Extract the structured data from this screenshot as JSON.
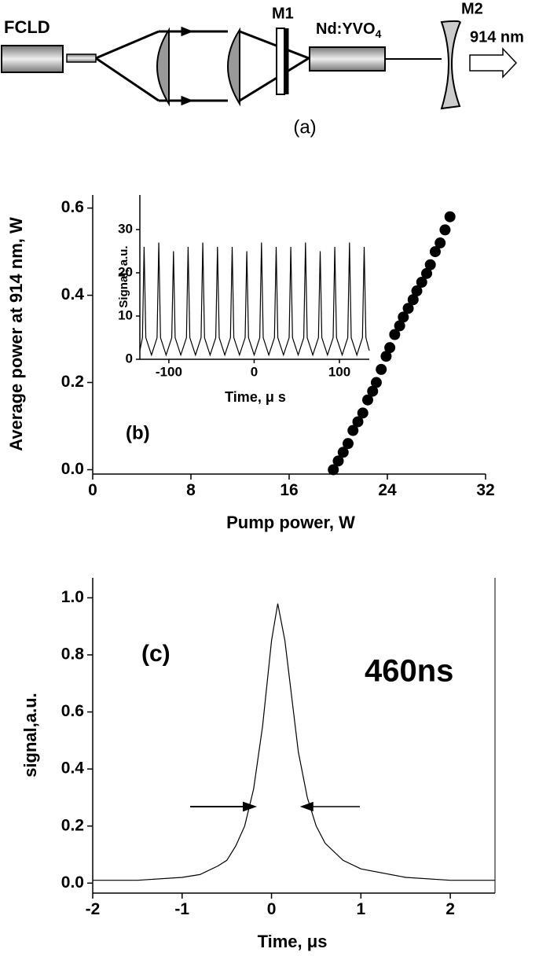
{
  "diagram": {
    "source": "FCLD",
    "mirror1": "M1",
    "crystal": {
      "base": "Nd:YVO",
      "subscript": "4"
    },
    "mirror2": "M2",
    "output": "914 nm",
    "caption": "(a)"
  },
  "chart_data": [
    {
      "type": "scatter",
      "xlabel": "Pump power, W",
      "ylabel": "Average power at 914 nm, W",
      "annotations": [
        "(b)"
      ],
      "color": "#000000",
      "x": [
        19.6,
        20.0,
        20.4,
        20.8,
        21.2,
        21.6,
        22.0,
        22.4,
        22.8,
        23.1,
        23.5,
        23.9,
        24.2,
        24.6,
        25.0,
        25.3,
        25.7,
        26.1,
        26.4,
        26.8,
        27.2,
        27.5,
        27.9,
        28.3,
        28.7,
        29.1
      ],
      "values": [
        0.0,
        0.02,
        0.04,
        0.06,
        0.09,
        0.11,
        0.13,
        0.16,
        0.18,
        0.2,
        0.23,
        0.26,
        0.28,
        0.31,
        0.33,
        0.35,
        0.37,
        0.39,
        0.41,
        0.43,
        0.45,
        0.47,
        0.5,
        0.52,
        0.55,
        0.58
      ],
      "xlim": [
        0,
        32
      ],
      "ylim": [
        -0.01,
        0.63
      ],
      "xticks": [
        0,
        8,
        16,
        24,
        32
      ],
      "yticks": [
        {
          "value": 0,
          "label": "0.0"
        },
        0.2,
        0.4,
        0.6
      ]
    },
    {
      "type": "line",
      "xlabel": "Time, μ s",
      "ylabel": "Signal, a.u.",
      "annotations": [],
      "color": "#000000",
      "x": [
        -134,
        -131,
        -129,
        -127,
        -120.4,
        -113.8,
        -111.8,
        -109.8,
        -103.2,
        -96.6,
        -94.6,
        -92.6,
        -86,
        -79.4,
        -77.4,
        -75.4,
        -68.8,
        -62.2,
        -60.2,
        -58.2,
        -51.6,
        -45,
        -43,
        -41,
        -34.4,
        -27.8,
        -25.8,
        -23.8,
        -17.2,
        -10.6,
        -8.6,
        -6.6,
        0,
        6.6,
        8.6,
        10.6,
        17.2,
        23.8,
        25.8,
        27.8,
        34.4,
        41,
        43,
        45,
        51.6,
        58.2,
        60.2,
        62.2,
        68.8,
        75.4,
        77.4,
        79.4,
        86,
        92.6,
        94.6,
        96.6,
        103.2,
        109.8,
        111.8,
        113.8,
        120.4,
        127,
        129,
        131,
        135
      ],
      "values": [
        2,
        5,
        26,
        5,
        1,
        5,
        27,
        5,
        1,
        5,
        25,
        5,
        1,
        5,
        26,
        5,
        1,
        5,
        27,
        5,
        1,
        5,
        26,
        5,
        1,
        5,
        26,
        5,
        1,
        5,
        25,
        5,
        1,
        5,
        27,
        5,
        1,
        5,
        26,
        5,
        1,
        5,
        26,
        5,
        1,
        5,
        27,
        5,
        1,
        5,
        25,
        5,
        1,
        5,
        26,
        5,
        1,
        5,
        27,
        5,
        1,
        5,
        26,
        5,
        2
      ],
      "xlim": [
        -134,
        135
      ],
      "ylim": [
        0,
        38
      ],
      "xticks": [
        -100,
        0,
        100
      ],
      "yticks": [
        0,
        10,
        20,
        30
      ]
    },
    {
      "type": "line",
      "xlabel": "Time, μs",
      "ylabel": "signal,a.u.",
      "annotations": [
        "(c)",
        "460ns"
      ],
      "color": "#000000",
      "x": [
        -2,
        -1.5,
        -1,
        -0.8,
        -0.6,
        -0.5,
        -0.4,
        -0.3,
        -0.2,
        -0.1,
        0,
        0.07,
        0.15,
        0.2,
        0.3,
        0.4,
        0.5,
        0.6,
        0.8,
        1,
        1.5,
        2,
        2.5
      ],
      "values": [
        0.01,
        0.01,
        0.02,
        0.03,
        0.06,
        0.08,
        0.13,
        0.2,
        0.33,
        0.55,
        0.85,
        0.98,
        0.85,
        0.72,
        0.46,
        0.3,
        0.2,
        0.14,
        0.08,
        0.05,
        0.02,
        0.01,
        0.01
      ],
      "xlim": [
        -2,
        2.5
      ],
      "ylim": [
        -0.035,
        1.07
      ],
      "xticks": [
        -2,
        -1,
        0,
        1,
        2
      ],
      "yticks": [
        {
          "value": 0,
          "label": "0.0"
        },
        0.2,
        0.4,
        0.6,
        0.8,
        {
          "value": 1,
          "label": "1.0"
        }
      ]
    }
  ]
}
